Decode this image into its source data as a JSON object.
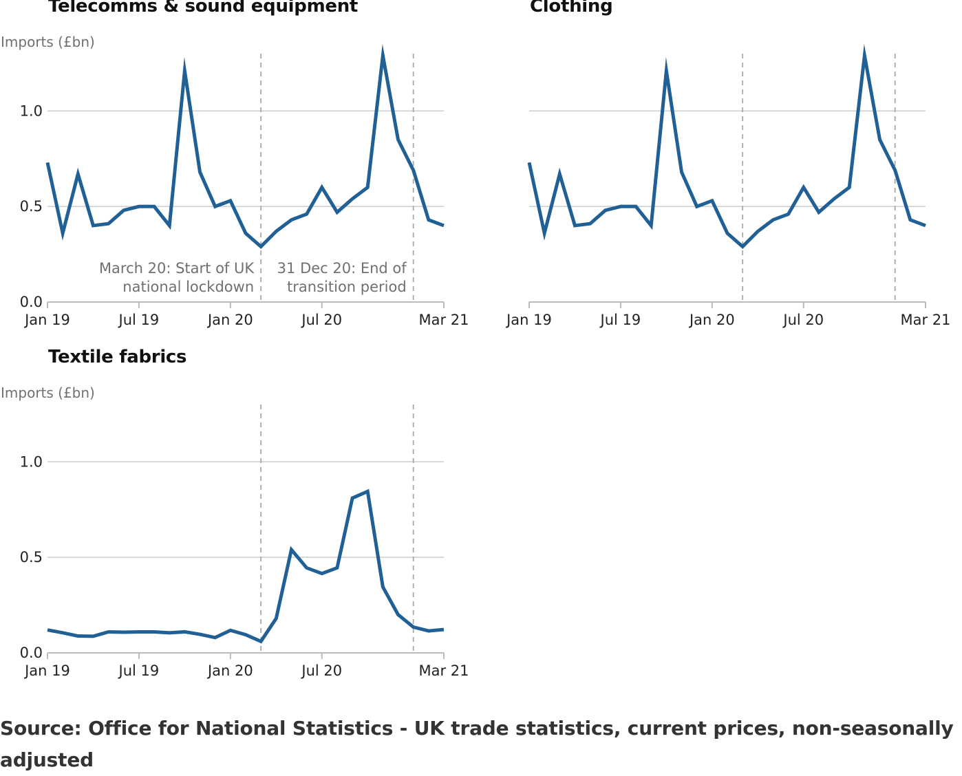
{
  "source": "Source: Office for National Statistics - UK trade statistics, current prices, non-seasonally adjusted",
  "colors": {
    "line": "#206095",
    "grid": "#cccccc",
    "axis": "#bbbbbb",
    "marker_line": "#a8a8a8",
    "muted_text": "#707070"
  },
  "chart_data": [
    {
      "type": "line",
      "title": "Telecomms & sound equipment",
      "ylabel": "Imports (£bn)",
      "xlabel": "",
      "ylim": [
        0,
        1.3
      ],
      "yticks": [
        0.0,
        0.5,
        1.0
      ],
      "ytick_labels": [
        "0.0",
        "0.5",
        "1.0"
      ],
      "xtick_labels": [
        "Jan 19",
        "Jul 19",
        "Jan 20",
        "Jul 20",
        "Mar 21"
      ],
      "xtick_months": [
        0,
        6,
        12,
        18,
        26
      ],
      "grid": true,
      "x": [
        "Jan 19",
        "Feb 19",
        "Mar 19",
        "Apr 19",
        "May 19",
        "Jun 19",
        "Jul 19",
        "Aug 19",
        "Sep 19",
        "Oct 19",
        "Nov 19",
        "Dec 19",
        "Jan 20",
        "Feb 20",
        "Mar 20",
        "Apr 20",
        "May 20",
        "Jun 20",
        "Jul 20",
        "Aug 20",
        "Sep 20",
        "Oct 20",
        "Nov 20",
        "Dec 20",
        "Jan 21",
        "Feb 21",
        "Mar 21"
      ],
      "series": [
        {
          "values": [
            0.73,
            0.36,
            0.67,
            0.4,
            0.41,
            0.48,
            0.5,
            0.5,
            0.4,
            1.21,
            0.68,
            0.5,
            0.53,
            0.36,
            0.29,
            0.37,
            0.43,
            0.46,
            0.6,
            0.47,
            0.54,
            0.6,
            1.29,
            0.85,
            0.69,
            0.43,
            0.4
          ]
        }
      ],
      "markers": [
        {
          "month": 14,
          "label_lines": [
            "March 20: Start of UK",
            "national lockdown"
          ],
          "align": "end"
        },
        {
          "month": 24,
          "label_lines": [
            "31 Dec 20: End of",
            "transition period"
          ],
          "align": "end"
        }
      ]
    },
    {
      "type": "line",
      "title": "Clothing",
      "ylabel": "",
      "xlabel": "",
      "ylim": [
        0,
        1.3
      ],
      "yticks": [
        0.0,
        0.5,
        1.0
      ],
      "ytick_labels": [
        "",
        "",
        ""
      ],
      "xtick_labels": [
        "Jan 19",
        "Jul 19",
        "Jan 20",
        "Jul 20",
        "Mar 21"
      ],
      "xtick_months": [
        0,
        6,
        12,
        18,
        26
      ],
      "grid": true,
      "x": [
        "Jan 19",
        "Feb 19",
        "Mar 19",
        "Apr 19",
        "May 19",
        "Jun 19",
        "Jul 19",
        "Aug 19",
        "Sep 19",
        "Oct 19",
        "Nov 19",
        "Dec 19",
        "Jan 20",
        "Feb 20",
        "Mar 20",
        "Apr 20",
        "May 20",
        "Jun 20",
        "Jul 20",
        "Aug 20",
        "Sep 20",
        "Oct 20",
        "Nov 20",
        "Dec 20",
        "Jan 21",
        "Feb 21",
        "Mar 21"
      ],
      "series": [
        {
          "values": [
            0.73,
            0.36,
            0.67,
            0.4,
            0.41,
            0.48,
            0.5,
            0.5,
            0.4,
            1.21,
            0.68,
            0.5,
            0.53,
            0.36,
            0.29,
            0.37,
            0.43,
            0.46,
            0.6,
            0.47,
            0.54,
            0.6,
            1.29,
            0.85,
            0.69,
            0.43,
            0.4
          ]
        }
      ],
      "markers": [
        {
          "month": 14,
          "label_lines": [],
          "align": "end"
        },
        {
          "month": 24,
          "label_lines": [],
          "align": "end"
        }
      ]
    },
    {
      "type": "line",
      "title": "Textile fabrics",
      "ylabel": "Imports (£bn)",
      "xlabel": "",
      "ylim": [
        0,
        1.3
      ],
      "yticks": [
        0.0,
        0.5,
        1.0
      ],
      "ytick_labels": [
        "0.0",
        "0.5",
        "1.0"
      ],
      "xtick_labels": [
        "Jan 19",
        "Jul 19",
        "Jan 20",
        "Jul 20",
        "Mar 21"
      ],
      "xtick_months": [
        0,
        6,
        12,
        18,
        26
      ],
      "grid": true,
      "x": [
        "Jan 19",
        "Feb 19",
        "Mar 19",
        "Apr 19",
        "May 19",
        "Jun 19",
        "Jul 19",
        "Aug 19",
        "Sep 19",
        "Oct 19",
        "Nov 19",
        "Dec 19",
        "Jan 20",
        "Feb 20",
        "Mar 20",
        "Apr 20",
        "May 20",
        "Jun 20",
        "Jul 20",
        "Aug 20",
        "Sep 20",
        "Oct 20",
        "Nov 20",
        "Dec 20",
        "Jan 21",
        "Feb 21",
        "Mar 21"
      ],
      "series": [
        {
          "values": [
            0.12,
            0.105,
            0.088,
            0.087,
            0.11,
            0.108,
            0.11,
            0.11,
            0.105,
            0.11,
            0.097,
            0.08,
            0.118,
            0.095,
            0.06,
            0.18,
            0.54,
            0.445,
            0.415,
            0.445,
            0.81,
            0.845,
            0.345,
            0.2,
            0.135,
            0.115,
            0.122
          ]
        }
      ],
      "markers": [
        {
          "month": 14,
          "label_lines": [],
          "align": "end"
        },
        {
          "month": 24,
          "label_lines": [],
          "align": "end"
        }
      ]
    }
  ]
}
